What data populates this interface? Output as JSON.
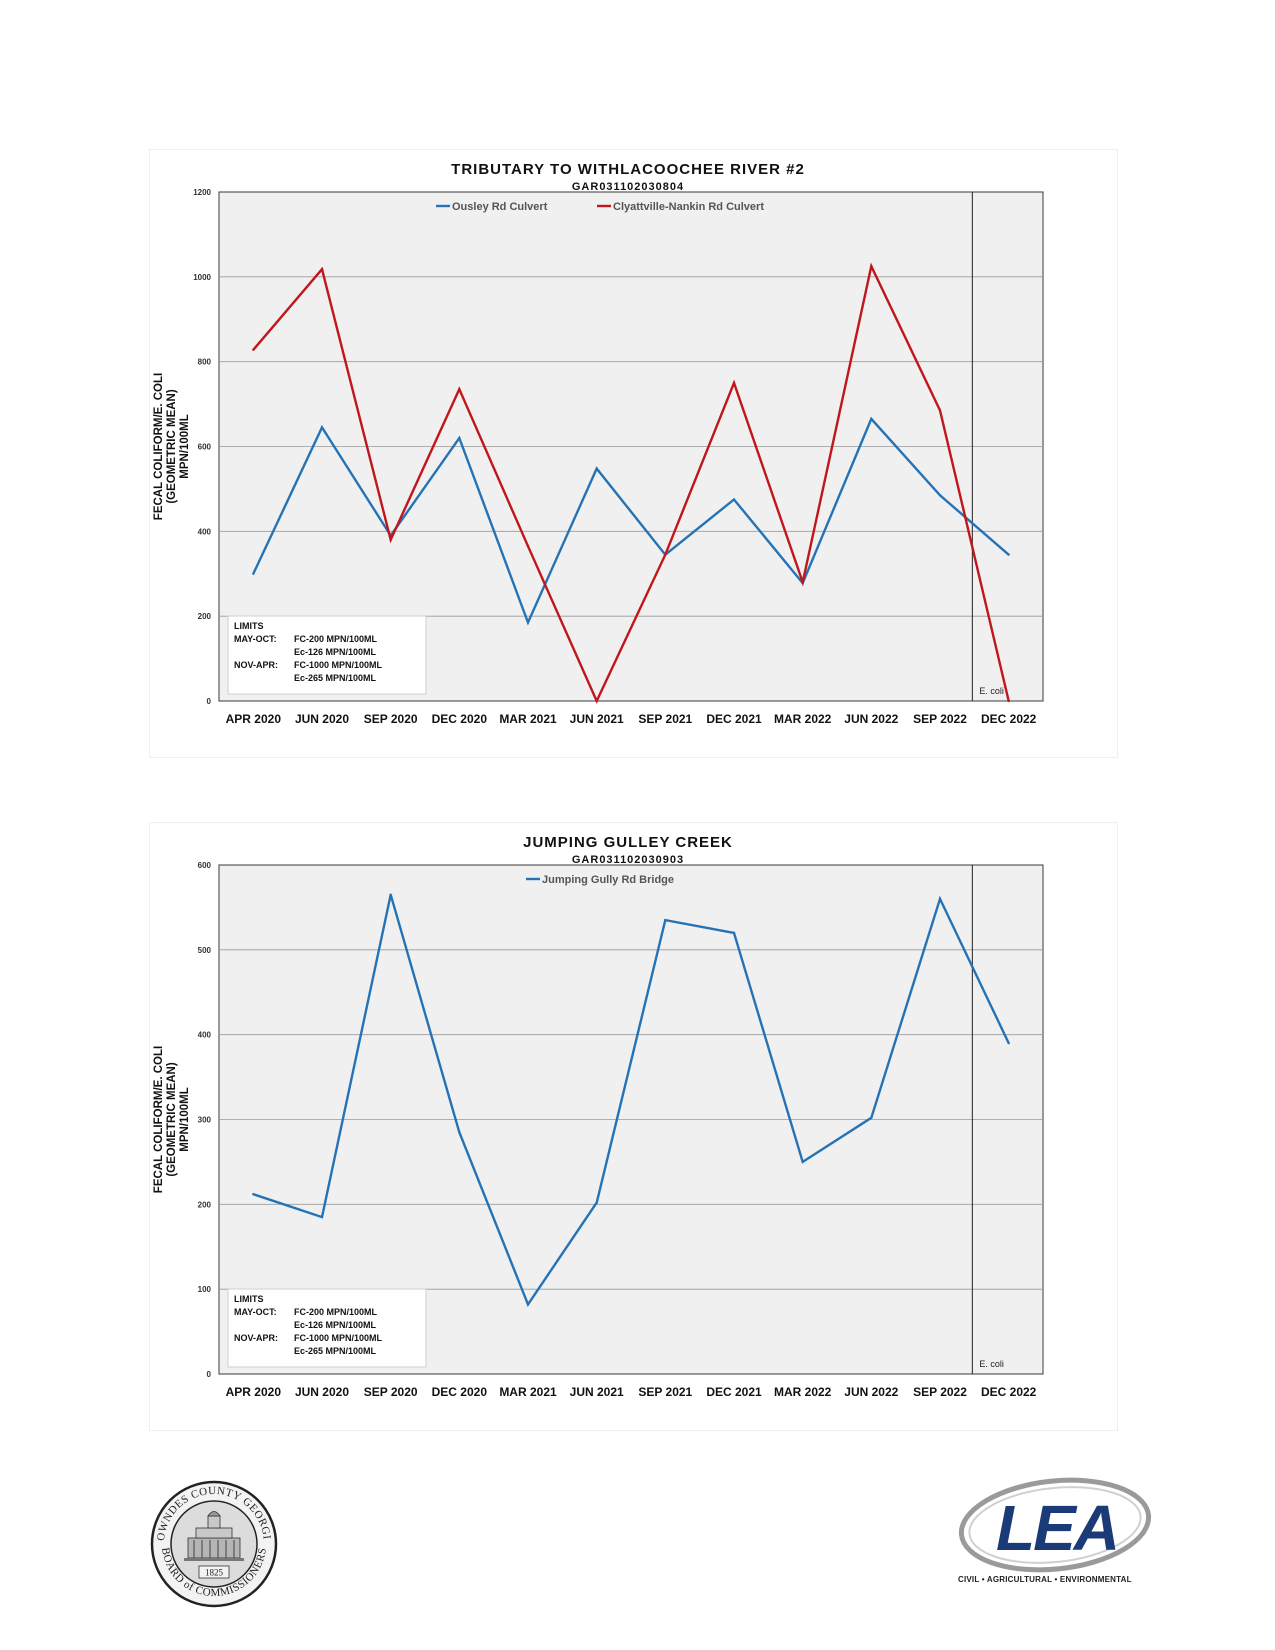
{
  "charts": [
    {
      "title": "TRIBUTARY TO WITHLACOOCHEE RIVER #2",
      "subtitle": "GAR031102030804",
      "ylabel": [
        "FECAL COLIFORM/E. COLI",
        "(GEOMETRIC MEAN)",
        "MPN/100ML"
      ],
      "legend": [
        "Ousley Rd Culvert",
        "Clyattville-Nankin Rd Culvert"
      ],
      "limits": {
        "heading": "LIMITS",
        "lines": [
          [
            "MAY-OCT:",
            "FC-200 MPN/100ML"
          ],
          [
            "",
            "Ec-126 MPN/100ML"
          ],
          [
            "NOV-APR:",
            "FC-1000 MPN/100ML"
          ],
          [
            "",
            "Ec-265 MPN/100ML"
          ]
        ]
      },
      "marker_label": "E. coli"
    },
    {
      "title": "JUMPING GULLEY CREEK",
      "subtitle": "GAR031102030903",
      "ylabel": [
        "FECAL COLIFORM/E. COLI",
        "(GEOMETRIC MEAN)",
        "MPN/100ML"
      ],
      "legend": [
        "Jumping Gully Rd Bridge"
      ],
      "limits": {
        "heading": "LIMITS",
        "lines": [
          [
            "MAY-OCT:",
            "FC-200 MPN/100ML"
          ],
          [
            "",
            "Ec-126 MPN/100ML"
          ],
          [
            "NOV-APR:",
            "FC-1000 MPN/100ML"
          ],
          [
            "",
            "Ec-265 MPN/100ML"
          ]
        ]
      },
      "marker_label": "E. coli"
    }
  ],
  "chart_data": [
    {
      "type": "line",
      "title": "TRIBUTARY TO WITHLACOOCHEE RIVER #2",
      "subtitle": "GAR031102030804",
      "categories": [
        "APR 2020",
        "JUN 2020",
        "SEP 2020",
        "DEC 2020",
        "MAR 2021",
        "JUN 2021",
        "SEP 2021",
        "DEC 2021",
        "MAR 2022",
        "JUN 2022",
        "SEP 2022",
        "DEC 2022"
      ],
      "ylim": [
        0,
        1200
      ],
      "yticks": [
        0,
        200,
        400,
        600,
        800,
        1000,
        1200
      ],
      "grid": true,
      "legend_position": "top-center",
      "vertical_marker": {
        "between": [
          "SEP 2022",
          "DEC 2022"
        ],
        "label": "E. coli"
      },
      "series": [
        {
          "name": "Ousley Rd Culvert",
          "color": "#2573b5",
          "values": [
            300,
            645,
            390,
            620,
            185,
            548,
            345,
            475,
            278,
            665,
            485,
            345
          ]
        },
        {
          "name": "Clyattville-Nankin Rd Culvert",
          "color": "#c0161c",
          "values": [
            828,
            1018,
            380,
            735,
            365,
            0,
            345,
            750,
            280,
            1025,
            685,
            0
          ]
        }
      ]
    },
    {
      "type": "line",
      "title": "JUMPING GULLEY CREEK",
      "subtitle": "GAR031102030903",
      "categories": [
        "APR 2020",
        "JUN 2020",
        "SEP 2020",
        "DEC 2020",
        "MAR 2021",
        "JUN 2021",
        "SEP 2021",
        "DEC 2021",
        "MAR 2022",
        "JUN 2022",
        "SEP 2022",
        "DEC 2022"
      ],
      "ylim": [
        0,
        600
      ],
      "yticks": [
        0,
        100,
        200,
        300,
        400,
        500,
        600
      ],
      "grid": true,
      "legend_position": "top-center",
      "vertical_marker": {
        "between": [
          "SEP 2022",
          "DEC 2022"
        ],
        "label": "E. coli"
      },
      "series": [
        {
          "name": "Jumping Gully Rd Bridge",
          "color": "#2573b5",
          "values": [
            212,
            185,
            565,
            285,
            82,
            202,
            535,
            520,
            250,
            302,
            560,
            390
          ]
        }
      ]
    }
  ],
  "logos": {
    "seal_text_top": "LOWNDES COUNTY GEORGIA",
    "seal_text_bottom": "BOARD of COMMISSIONERS",
    "seal_year": "1825",
    "lea_mark": "LEA",
    "lea_tagline": "CIVIL • AGRICULTURAL • ENVIRONMENTAL"
  }
}
